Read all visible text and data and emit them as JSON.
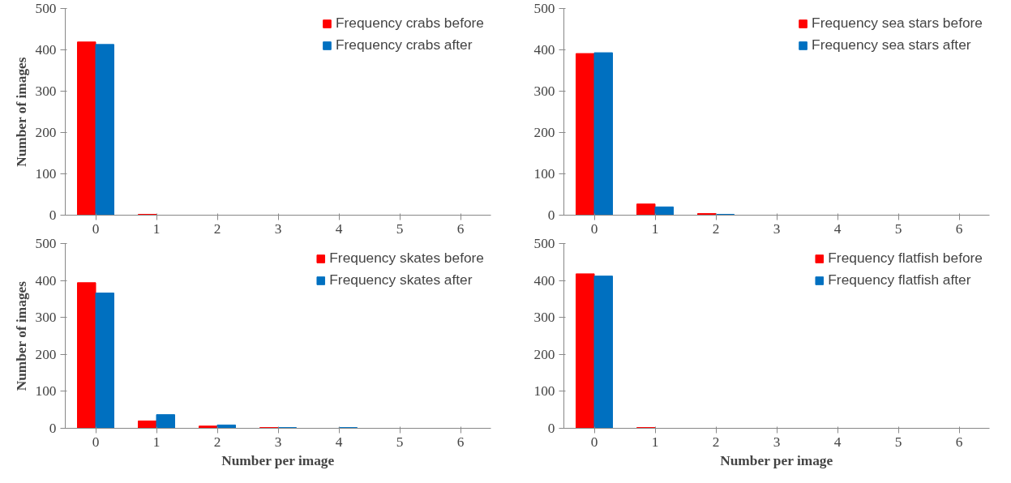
{
  "chart_data": [
    {
      "type": "bar",
      "ylabel": "Number of images",
      "categories": [
        "0",
        "1",
        "2",
        "3",
        "4",
        "5",
        "6"
      ],
      "ylim": [
        0,
        500
      ],
      "yticks": [
        0,
        100,
        200,
        300,
        400,
        500
      ],
      "grid": false,
      "legend": "top right",
      "series": [
        {
          "name": "Frequency crabs before",
          "color": "#ff0000",
          "values": [
            419,
            2,
            0,
            0,
            0,
            0,
            0
          ]
        },
        {
          "name": "Frequency crabs after",
          "color": "#0070c0",
          "values": [
            413,
            0,
            0,
            0,
            0,
            0,
            0
          ]
        }
      ]
    },
    {
      "type": "bar",
      "categories": [
        "0",
        "1",
        "2",
        "3",
        "4",
        "5",
        "6"
      ],
      "ylim": [
        0,
        500
      ],
      "yticks": [
        0,
        100,
        200,
        300,
        400,
        500
      ],
      "grid": false,
      "legend": "top right",
      "series": [
        {
          "name": "Frequency sea stars before",
          "color": "#ff0000",
          "values": [
            391,
            27,
            4,
            0,
            0,
            0,
            0
          ]
        },
        {
          "name": "Frequency sea stars after",
          "color": "#0070c0",
          "values": [
            393,
            20,
            2,
            0,
            0,
            0,
            0
          ]
        }
      ]
    },
    {
      "type": "bar",
      "xlabel": "Number per image",
      "ylabel": "Number of images",
      "categories": [
        "0",
        "1",
        "2",
        "3",
        "4",
        "5",
        "6"
      ],
      "ylim": [
        0,
        500
      ],
      "yticks": [
        0,
        100,
        200,
        300,
        400,
        500
      ],
      "grid": false,
      "legend": "top right",
      "series": [
        {
          "name": "Frequency skates before",
          "color": "#ff0000",
          "values": [
            394,
            20,
            6,
            2,
            0,
            0,
            0
          ]
        },
        {
          "name": "Frequency skates after",
          "color": "#0070c0",
          "values": [
            366,
            37,
            9,
            2,
            2,
            0,
            0
          ]
        }
      ]
    },
    {
      "type": "bar",
      "xlabel": "Number per image",
      "categories": [
        "0",
        "1",
        "2",
        "3",
        "4",
        "5",
        "6"
      ],
      "ylim": [
        0,
        500
      ],
      "yticks": [
        0,
        100,
        200,
        300,
        400,
        500
      ],
      "grid": false,
      "legend": "top right",
      "series": [
        {
          "name": "Frequency flatfish before",
          "color": "#ff0000",
          "values": [
            418,
            2,
            0,
            0,
            0,
            0,
            0
          ]
        },
        {
          "name": "Frequency flatfish after",
          "color": "#0070c0",
          "values": [
            412,
            0,
            0,
            0,
            0,
            0,
            0
          ]
        }
      ]
    }
  ]
}
